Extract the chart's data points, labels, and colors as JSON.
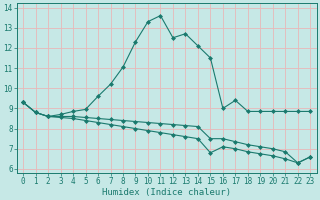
{
  "xlabel": "Humidex (Indice chaleur)",
  "xlim": [
    -0.5,
    23.5
  ],
  "ylim": [
    5.8,
    14.2
  ],
  "xticks": [
    0,
    1,
    2,
    3,
    4,
    5,
    6,
    7,
    8,
    9,
    10,
    11,
    12,
    13,
    14,
    15,
    16,
    17,
    18,
    19,
    20,
    21,
    22,
    23
  ],
  "yticks": [
    6,
    7,
    8,
    9,
    10,
    11,
    12,
    13,
    14
  ],
  "bg_color": "#c6e8e6",
  "grid_color": "#e8b8b8",
  "line_color": "#1a7a6e",
  "curve1_x": [
    0,
    1,
    2,
    3,
    4,
    5,
    6,
    7,
    8,
    9,
    10,
    11,
    12,
    13,
    14,
    15,
    16,
    17,
    18,
    19,
    20,
    21,
    22,
    23
  ],
  "curve1_y": [
    9.3,
    8.8,
    8.6,
    8.7,
    8.85,
    8.95,
    9.6,
    10.2,
    11.05,
    12.3,
    13.3,
    13.6,
    12.5,
    12.7,
    12.1,
    11.5,
    9.0,
    9.4,
    8.85,
    8.85,
    8.85,
    8.85,
    8.85,
    8.85
  ],
  "curve2_x": [
    0,
    1,
    2,
    3,
    4,
    5,
    6,
    7,
    8,
    9,
    10,
    11,
    12,
    13,
    14,
    15,
    16,
    17,
    18,
    19,
    20,
    21,
    22,
    23
  ],
  "curve2_y": [
    9.3,
    8.8,
    8.6,
    8.6,
    8.6,
    8.55,
    8.5,
    8.45,
    8.4,
    8.35,
    8.3,
    8.25,
    8.2,
    8.15,
    8.1,
    7.5,
    7.5,
    7.35,
    7.2,
    7.1,
    7.0,
    6.85,
    6.3,
    6.6
  ],
  "curve3_x": [
    0,
    1,
    2,
    3,
    4,
    5,
    6,
    7,
    8,
    9,
    10,
    11,
    12,
    13,
    14,
    15,
    16,
    17,
    18,
    19,
    20,
    21,
    22,
    23
  ],
  "curve3_y": [
    9.3,
    8.8,
    8.6,
    8.55,
    8.5,
    8.4,
    8.3,
    8.2,
    8.1,
    8.0,
    7.9,
    7.8,
    7.7,
    7.6,
    7.5,
    6.8,
    7.1,
    7.0,
    6.85,
    6.75,
    6.65,
    6.5,
    6.3,
    6.6
  ]
}
